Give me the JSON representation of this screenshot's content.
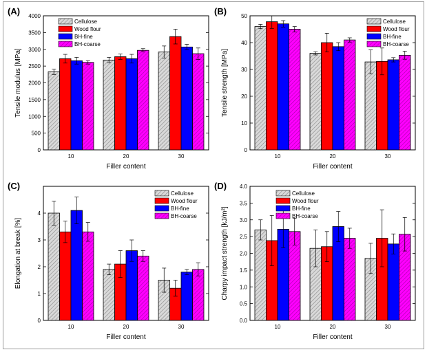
{
  "figure_title": "",
  "colors": {
    "cellulose_fill": "#d9d9d9",
    "cellulose_hatch": "#8a8a8a",
    "wood_flour": "#ff0000",
    "bh_fine": "#0000ff",
    "bh_coarse": "#ff00ff",
    "bh_coarse_hatch": "#a000a0"
  },
  "chart_data": [
    {
      "type": "bar",
      "panel_label": "(A)",
      "xlabel": "Filler content",
      "ylabel": "Tensile modulus [MPa]",
      "categories": [
        "10",
        "20",
        "30"
      ],
      "ylim": [
        0,
        4000
      ],
      "yticks": [
        0,
        500,
        1000,
        1500,
        2000,
        2500,
        3000,
        3500,
        4000
      ],
      "ytick_labels": [
        "0",
        "500",
        "1000",
        "1500",
        "2000",
        "2500",
        "3000",
        "3500",
        "4000"
      ],
      "legend": [
        "Cellulose",
        "Wood flour",
        "BH-fine",
        "BH-coarse"
      ],
      "legend_position": "top-left",
      "series": [
        {
          "name": "Cellulose",
          "values": [
            2330,
            2680,
            2920
          ],
          "errors": [
            80,
            80,
            180
          ]
        },
        {
          "name": "Wood flour",
          "values": [
            2720,
            2780,
            3380
          ],
          "errors": [
            130,
            80,
            220
          ]
        },
        {
          "name": "BH-fine",
          "values": [
            2660,
            2720,
            3070
          ],
          "errors": [
            100,
            130,
            80
          ]
        },
        {
          "name": "BH-coarse",
          "values": [
            2610,
            2970,
            2870
          ],
          "errors": [
            50,
            50,
            170
          ]
        }
      ]
    },
    {
      "type": "bar",
      "panel_label": "(B)",
      "xlabel": "Filler content",
      "ylabel": "Tensile strength [MPa]",
      "categories": [
        "10",
        "20",
        "30"
      ],
      "ylim": [
        0,
        50
      ],
      "yticks": [
        0,
        10,
        20,
        30,
        40,
        50
      ],
      "ytick_labels": [
        "0",
        "10",
        "20",
        "30",
        "40",
        "50"
      ],
      "legend": [
        "Cellulose",
        "Wood flour",
        "BH-fine",
        "BH-coarse"
      ],
      "legend_position": "top-right",
      "series": [
        {
          "name": "Cellulose",
          "values": [
            46,
            36,
            32.8
          ],
          "errors": [
            0.8,
            0.6,
            4.5
          ]
        },
        {
          "name": "Wood flour",
          "values": [
            47.8,
            40,
            33
          ],
          "errors": [
            2.5,
            3.5,
            5
          ]
        },
        {
          "name": "BH-fine",
          "values": [
            47,
            38.5,
            33.6
          ],
          "errors": [
            1.2,
            1.5,
            0.8
          ]
        },
        {
          "name": "BH-coarse",
          "values": [
            45,
            41,
            35.3
          ],
          "errors": [
            1,
            0.8,
            1.5
          ]
        }
      ]
    },
    {
      "type": "bar",
      "panel_label": "(C)",
      "xlabel": "Filler content",
      "ylabel": "Elongation at break [%]",
      "categories": [
        "10",
        "20",
        "30"
      ],
      "ylim": [
        0,
        5
      ],
      "yticks": [
        0,
        1,
        2,
        3,
        4
      ],
      "ytick_labels": [
        "0",
        "1",
        "2",
        "3",
        "4"
      ],
      "legend": [
        "Cellulose",
        "Wood flour",
        "BH-fine",
        "BH-coarse"
      ],
      "legend_position": "top-right",
      "series": [
        {
          "name": "Cellulose",
          "values": [
            4,
            1.9,
            1.5
          ],
          "errors": [
            0.45,
            0.2,
            0.45
          ]
        },
        {
          "name": "Wood flour",
          "values": [
            3.3,
            2.1,
            1.2
          ],
          "errors": [
            0.4,
            0.5,
            0.3
          ]
        },
        {
          "name": "BH-fine",
          "values": [
            4.1,
            2.6,
            1.8
          ],
          "errors": [
            0.5,
            0.4,
            0.1
          ]
        },
        {
          "name": "BH-coarse",
          "values": [
            3.3,
            2.4,
            1.9
          ],
          "errors": [
            0.35,
            0.2,
            0.25
          ]
        }
      ]
    },
    {
      "type": "bar",
      "panel_label": "(D)",
      "xlabel": "Filler content",
      "ylabel": "Charpy impact strength [kJ/m²]",
      "categories": [
        "10",
        "20",
        "30"
      ],
      "ylim": [
        0,
        4
      ],
      "yticks": [
        0,
        0.5,
        1,
        1.5,
        2,
        2.5,
        3,
        3.5,
        4
      ],
      "ytick_labels": [
        "0.0",
        "0.5",
        "1.0",
        "1.5",
        "2.0",
        "2.5",
        "3.0",
        "3.5",
        "4.0"
      ],
      "legend": [
        "Cellulose",
        "Wood flour",
        "BH-fine",
        "BH-coarse"
      ],
      "legend_position": "top-left",
      "series": [
        {
          "name": "Cellulose",
          "values": [
            2.7,
            2.15,
            1.85
          ],
          "errors": [
            0.3,
            0.55,
            0.45
          ]
        },
        {
          "name": "Wood flour",
          "values": [
            2.38,
            2.2,
            2.45
          ],
          "errors": [
            0.75,
            0.45,
            0.85
          ]
        },
        {
          "name": "BH-fine",
          "values": [
            2.72,
            2.8,
            2.28
          ],
          "errors": [
            0.55,
            0.45,
            0.3
          ]
        },
        {
          "name": "BH-coarse",
          "values": [
            2.65,
            2.45,
            2.57
          ],
          "errors": [
            0.4,
            0.3,
            0.5
          ]
        }
      ]
    }
  ]
}
